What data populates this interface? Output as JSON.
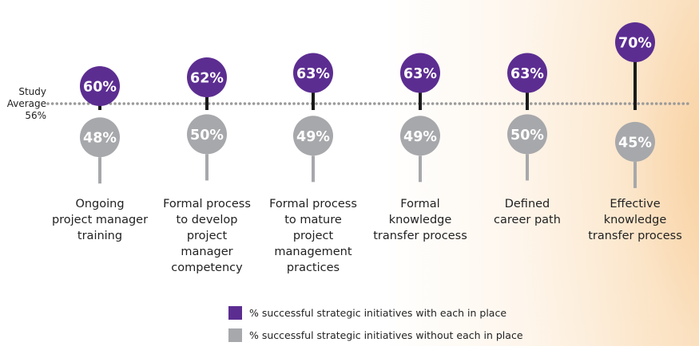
{
  "colors": {
    "with": "#5c2d91",
    "without": "#a7a8ab",
    "connector": "#1a1a1a",
    "avg_line": "#9a9a9a"
  },
  "average": {
    "label_line1": "Study",
    "label_line2": "Average",
    "value_text": "56%",
    "value": 56
  },
  "chart_data": {
    "type": "dot-comparison",
    "title": "",
    "y_unit": "% successful strategic initiatives",
    "reference_line": 56,
    "categories": [
      [
        "Ongoing",
        "project manager",
        "training"
      ],
      [
        "Formal process",
        "to develop",
        "project",
        "manager",
        "competency"
      ],
      [
        "Formal process",
        "to mature",
        "project",
        "management",
        "practices"
      ],
      [
        "Formal",
        "knowledge",
        "transfer process"
      ],
      [
        "Defined",
        "career path"
      ],
      [
        "Effective",
        "knowledge",
        "transfer process"
      ]
    ],
    "series": [
      {
        "name": "% successful strategic initiatives with each in place",
        "values": [
          60,
          62,
          63,
          63,
          63,
          70
        ],
        "labels": [
          "60%",
          "62%",
          "63%",
          "63%",
          "63%",
          "70%"
        ]
      },
      {
        "name": "% successful strategic initiatives without each in place",
        "values": [
          48,
          50,
          49,
          49,
          50,
          45
        ],
        "labels": [
          "48%",
          "50%",
          "49%",
          "49%",
          "50%",
          "45%"
        ]
      }
    ]
  },
  "legend": [
    {
      "label": "% successful strategic initiatives with each in place",
      "color": "#5c2d91"
    },
    {
      "label": "% successful strategic initiatives without each in place",
      "color": "#a7a8ab"
    }
  ]
}
